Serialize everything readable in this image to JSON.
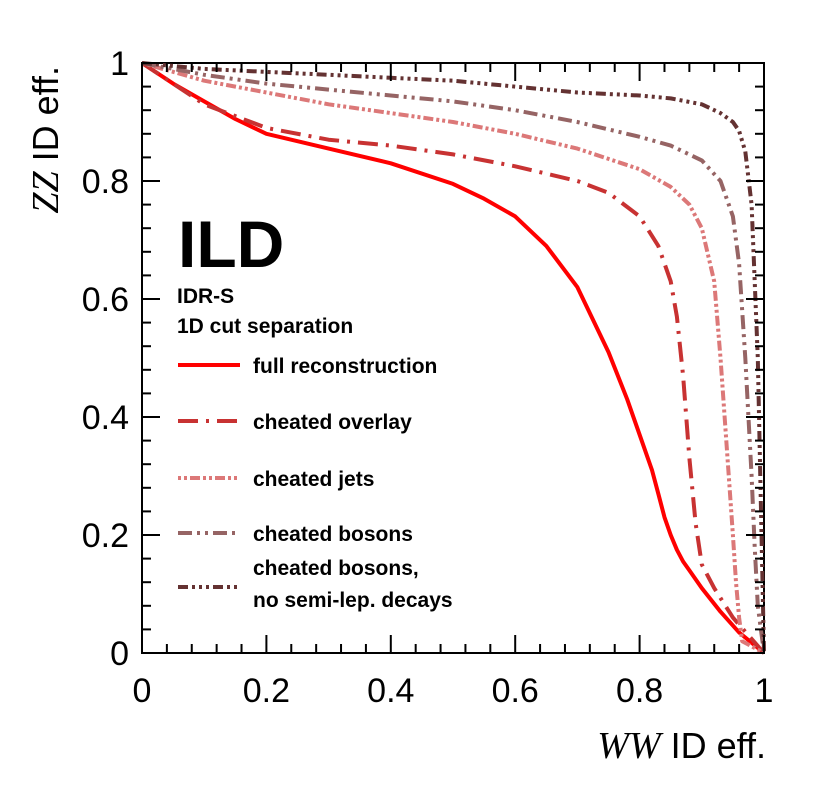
{
  "chart_data": {
    "type": "line",
    "title": "",
    "xlabel_italic": "WW",
    "xlabel_rest": "ID eff.",
    "ylabel_italic": "ZZ",
    "ylabel_rest": "ID eff.",
    "xlim": [
      0,
      1
    ],
    "ylim": [
      0,
      1
    ],
    "xticks": [
      0,
      0.2,
      0.4,
      0.6,
      0.8,
      1
    ],
    "yticks": [
      0,
      0.2,
      0.4,
      0.6,
      0.8,
      1
    ],
    "xtick_labels": [
      "0",
      "0.2",
      "0.4",
      "0.6",
      "0.8",
      "1"
    ],
    "ytick_labels": [
      "0",
      "0.2",
      "0.4",
      "0.6",
      "0.8",
      "1"
    ],
    "grid": false,
    "experiment_label": "ILD",
    "annotation_lines": [
      "IDR-S",
      "1D cut separation"
    ],
    "legend_position": "left",
    "series": [
      {
        "name": "full reconstruction",
        "color": "#ff0000",
        "dash": "solid",
        "x": [
          0,
          0.05,
          0.1,
          0.15,
          0.2,
          0.3,
          0.4,
          0.5,
          0.55,
          0.6,
          0.65,
          0.7,
          0.75,
          0.78,
          0.8,
          0.82,
          0.83,
          0.84,
          0.85,
          0.86,
          0.87,
          0.88,
          0.9,
          0.93,
          0.96,
          1.0
        ],
        "y": [
          1.0,
          0.965,
          0.935,
          0.905,
          0.88,
          0.855,
          0.83,
          0.795,
          0.77,
          0.74,
          0.69,
          0.62,
          0.51,
          0.43,
          0.37,
          0.31,
          0.27,
          0.23,
          0.2,
          0.175,
          0.155,
          0.14,
          0.11,
          0.07,
          0.035,
          0.0
        ]
      },
      {
        "name": "cheated overlay",
        "color": "#c83232",
        "dash": "20,8,3,8",
        "x": [
          0,
          0.05,
          0.1,
          0.2,
          0.3,
          0.4,
          0.5,
          0.6,
          0.7,
          0.75,
          0.8,
          0.83,
          0.85,
          0.86,
          0.87,
          0.88,
          0.89,
          0.9,
          0.91,
          0.92,
          0.95,
          1.0
        ],
        "y": [
          1.0,
          0.965,
          0.93,
          0.89,
          0.87,
          0.86,
          0.845,
          0.825,
          0.8,
          0.78,
          0.74,
          0.69,
          0.63,
          0.57,
          0.47,
          0.33,
          0.22,
          0.15,
          0.13,
          0.11,
          0.06,
          0.0
        ]
      },
      {
        "name": "cheated jets",
        "color": "#dc7878",
        "dash": "3,3,3,3,10,3",
        "x": [
          0,
          0.1,
          0.2,
          0.3,
          0.4,
          0.5,
          0.6,
          0.7,
          0.8,
          0.85,
          0.88,
          0.9,
          0.92,
          0.93,
          0.94,
          0.95,
          0.955,
          0.96,
          0.965,
          1.0
        ],
        "y": [
          1.0,
          0.97,
          0.95,
          0.93,
          0.915,
          0.9,
          0.88,
          0.855,
          0.82,
          0.79,
          0.76,
          0.72,
          0.63,
          0.5,
          0.35,
          0.2,
          0.12,
          0.06,
          0.02,
          0.0
        ]
      },
      {
        "name": "cheated bosons",
        "color": "#966464",
        "dash": "14,5,3,5,3,5",
        "x": [
          0,
          0.1,
          0.2,
          0.3,
          0.4,
          0.5,
          0.6,
          0.7,
          0.8,
          0.85,
          0.9,
          0.93,
          0.95,
          0.96,
          0.97,
          0.98,
          0.985,
          0.99,
          1.0
        ],
        "y": [
          1.0,
          0.98,
          0.965,
          0.955,
          0.945,
          0.935,
          0.92,
          0.9,
          0.875,
          0.86,
          0.835,
          0.8,
          0.74,
          0.66,
          0.5,
          0.3,
          0.18,
          0.08,
          0.0
        ]
      },
      {
        "name": "cheated bosons,\nno semi-lep. decays",
        "name_lines": [
          "cheated bosons,",
          "no semi-lep. decays"
        ],
        "color": "#643232",
        "dash": "10,4,3,4,3,4,3,4",
        "x": [
          0,
          0.1,
          0.2,
          0.3,
          0.4,
          0.5,
          0.6,
          0.7,
          0.8,
          0.85,
          0.9,
          0.93,
          0.95,
          0.96,
          0.97,
          0.98,
          0.99,
          0.995,
          1.0
        ],
        "y": [
          1.0,
          0.99,
          0.985,
          0.98,
          0.975,
          0.97,
          0.96,
          0.95,
          0.945,
          0.94,
          0.93,
          0.915,
          0.9,
          0.885,
          0.85,
          0.76,
          0.5,
          0.25,
          0.0
        ]
      }
    ]
  }
}
